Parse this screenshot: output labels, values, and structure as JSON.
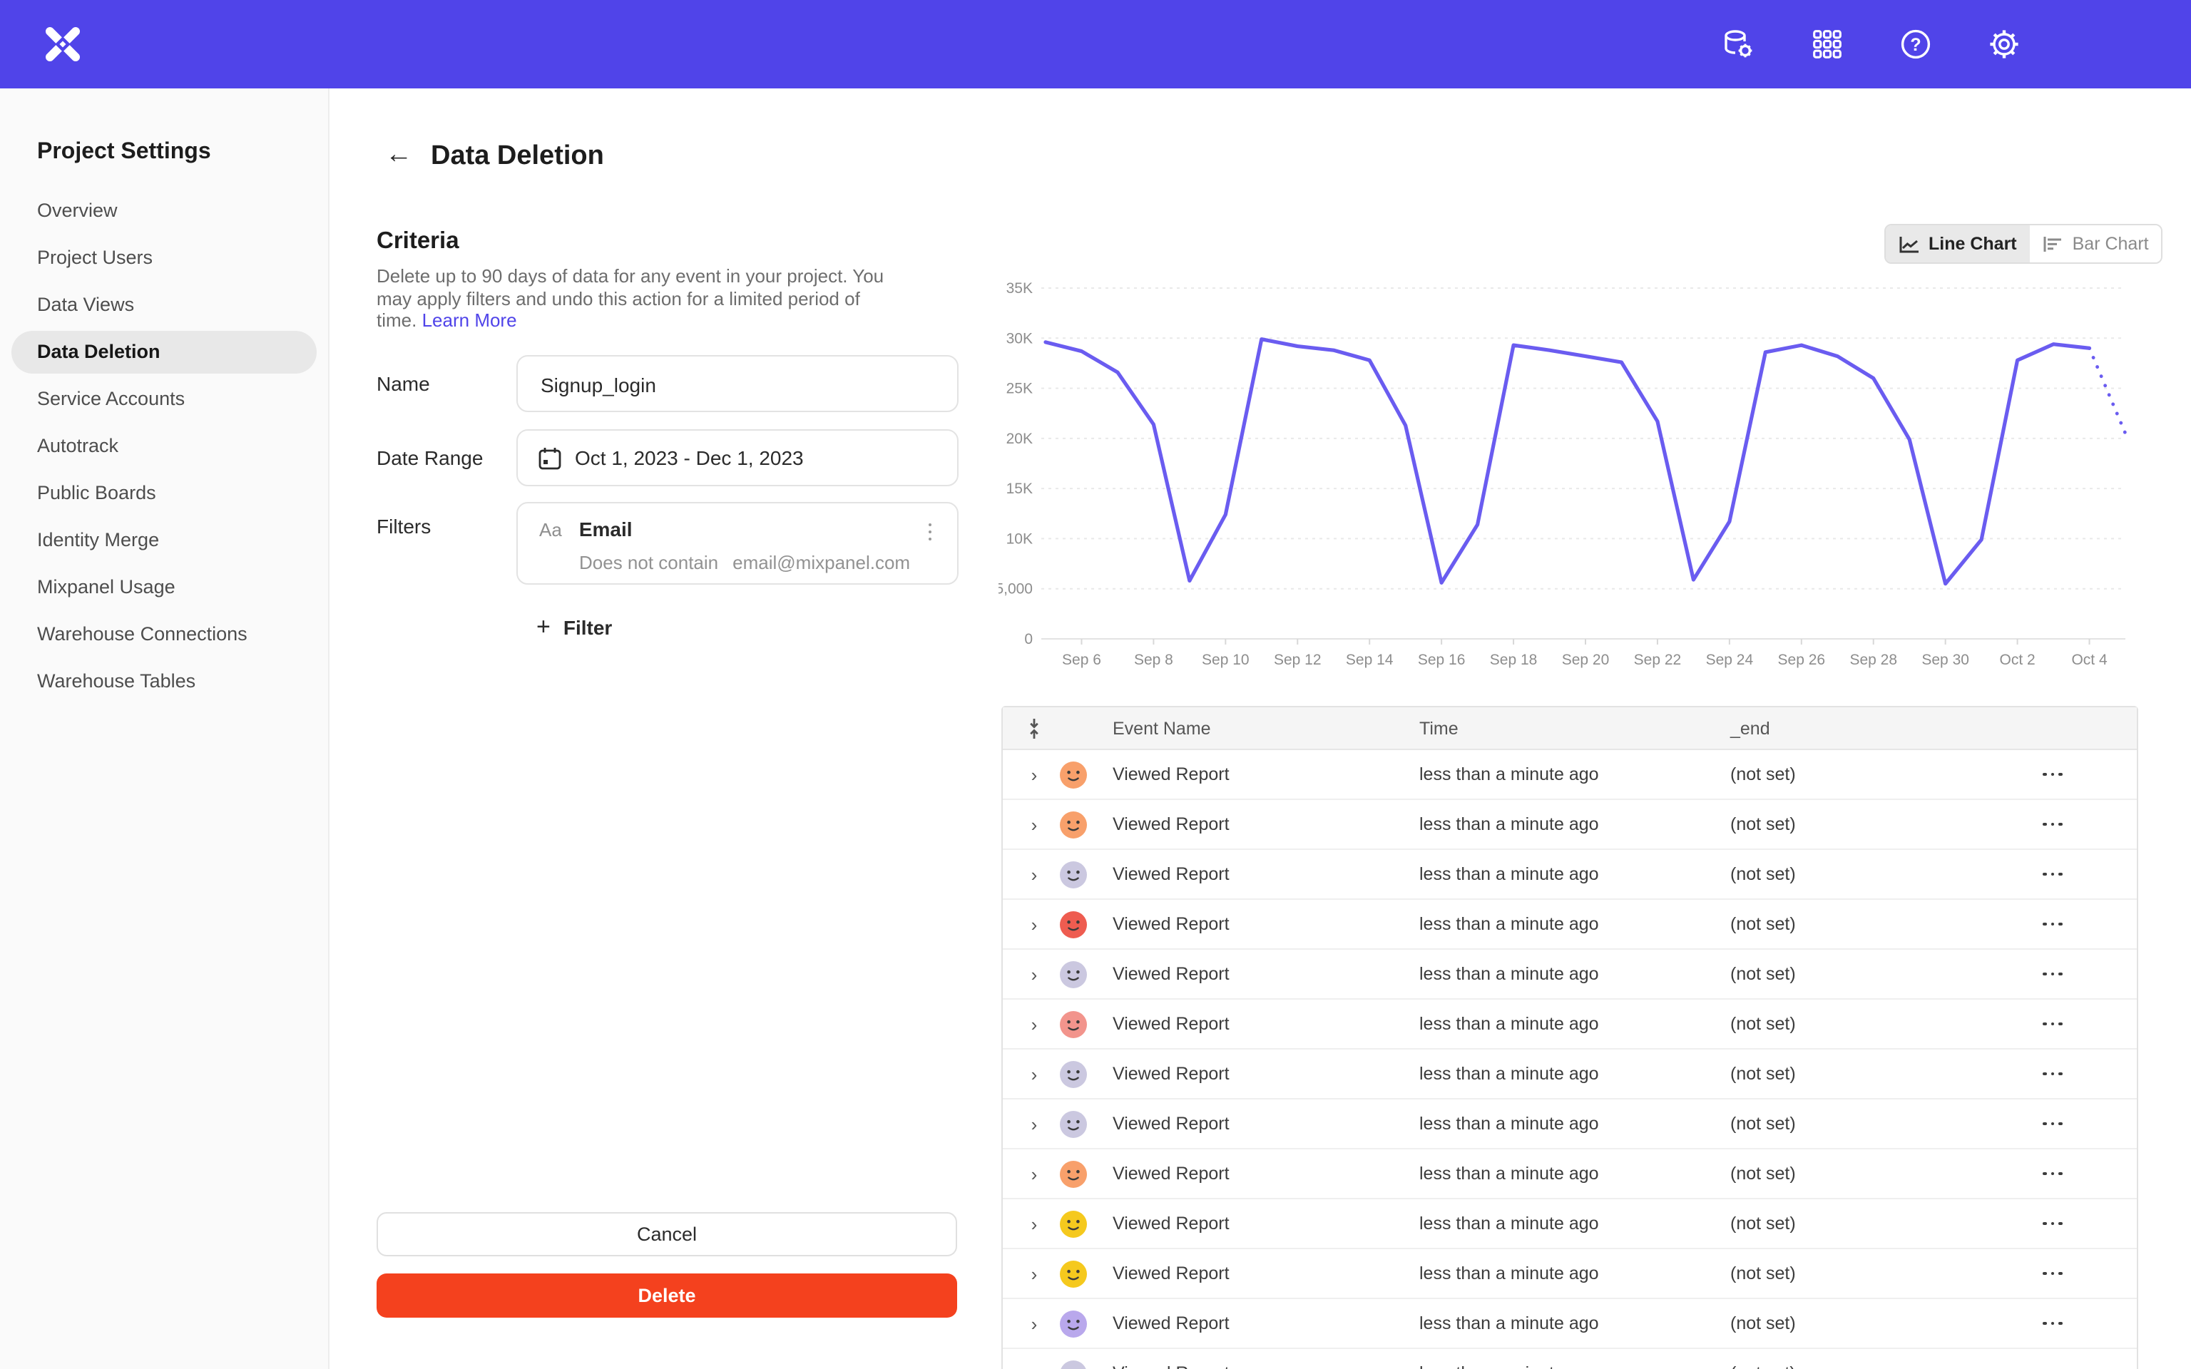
{
  "brand_color": "#5044E9",
  "accent_delete_color": "#F4411E",
  "header": {
    "logo": "mixpanel-x-logo",
    "icons": [
      "data-connections-icon",
      "apps-grid-icon",
      "help-icon",
      "settings-gear-icon"
    ]
  },
  "sidebar": {
    "title": "Project Settings",
    "items": [
      {
        "label": "Overview",
        "selected": false
      },
      {
        "label": "Project Users",
        "selected": false
      },
      {
        "label": "Data Views",
        "selected": false
      },
      {
        "label": "Data Deletion",
        "selected": true
      },
      {
        "label": "Service Accounts",
        "selected": false
      },
      {
        "label": "Autotrack",
        "selected": false
      },
      {
        "label": "Public Boards",
        "selected": false
      },
      {
        "label": "Identity Merge",
        "selected": false
      },
      {
        "label": "Mixpanel Usage",
        "selected": false
      },
      {
        "label": "Warehouse Connections",
        "selected": false
      },
      {
        "label": "Warehouse Tables",
        "selected": false
      }
    ]
  },
  "page": {
    "title": "Data Deletion"
  },
  "criteria": {
    "heading": "Criteria",
    "description": "Delete up to 90 days of data for any event in your project. You may apply filters and undo this action for a limited period of time. ",
    "link_label": "Learn More"
  },
  "form": {
    "name_label": "Name",
    "name_value": "Signup_login",
    "date_label": "Date Range",
    "date_value": "Oct 1, 2023 - Dec 1, 2023",
    "filters_label": "Filters",
    "filter": {
      "type_badge": "Aa",
      "property": "Email",
      "operator": "Does not contain",
      "value": "email@mixpanel.com"
    },
    "add_filter_label": "Filter",
    "add_filter_plus": "+"
  },
  "actions": {
    "cancel_label": "Cancel",
    "delete_label": "Delete"
  },
  "chart_toggle": {
    "line_label": "Line Chart",
    "bar_label": "Bar Chart",
    "active": "line"
  },
  "chart_data": {
    "type": "line",
    "title": "",
    "xlabel": "",
    "ylabel": "",
    "line_color": "#6A5CF0",
    "grid": true,
    "ylim": [
      0,
      35000
    ],
    "ytick_labels": [
      "35K",
      "30K",
      "25K",
      "20K",
      "15K",
      "10K",
      "5,000",
      "0"
    ],
    "x": [
      "Sep 5",
      "Sep 6",
      "Sep 7",
      "Sep 8",
      "Sep 9",
      "Sep 10",
      "Sep 11",
      "Sep 12",
      "Sep 13",
      "Sep 14",
      "Sep 15",
      "Sep 16",
      "Sep 17",
      "Sep 18",
      "Sep 19",
      "Sep 20",
      "Sep 21",
      "Sep 22",
      "Sep 23",
      "Sep 24",
      "Sep 25",
      "Sep 26",
      "Sep 27",
      "Sep 28",
      "Sep 29",
      "Sep 30",
      "Oct 1",
      "Oct 2",
      "Oct 3",
      "Oct 4",
      "Oct 5"
    ],
    "values": [
      29600,
      28700,
      26600,
      21400,
      5800,
      12400,
      29900,
      29200,
      28800,
      27800,
      21300,
      5600,
      11400,
      29300,
      28800,
      28200,
      27600,
      21700,
      5900,
      11700,
      28600,
      29300,
      28200,
      26000,
      19900,
      5500,
      9900,
      27800,
      29400,
      29000,
      20500
    ],
    "xtick_labels": [
      "Sep 6",
      "Sep 8",
      "Sep 10",
      "Sep 12",
      "Sep 14",
      "Sep 16",
      "Sep 18",
      "Sep 20",
      "Sep 22",
      "Sep 24",
      "Sep 26",
      "Sep 28",
      "Sep 30",
      "Oct 2",
      "Oct 4"
    ],
    "projected_last_segment": true,
    "legend": []
  },
  "table": {
    "columns": [
      "Event Name",
      "Time",
      "_end"
    ],
    "rows": [
      {
        "event": "Viewed Report",
        "time": "less than a minute ago",
        "end": "(not set)",
        "avatar_color": "#F8A06B"
      },
      {
        "event": "Viewed Report",
        "time": "less than a minute ago",
        "end": "(not set)",
        "avatar_color": "#F8A06B"
      },
      {
        "event": "Viewed Report",
        "time": "less than a minute ago",
        "end": "(not set)",
        "avatar_color": "#CBC8E0"
      },
      {
        "event": "Viewed Report",
        "time": "less than a minute ago",
        "end": "(not set)",
        "avatar_color": "#EE5C50"
      },
      {
        "event": "Viewed Report",
        "time": "less than a minute ago",
        "end": "(not set)",
        "avatar_color": "#CBC8E0"
      },
      {
        "event": "Viewed Report",
        "time": "less than a minute ago",
        "end": "(not set)",
        "avatar_color": "#F2948C"
      },
      {
        "event": "Viewed Report",
        "time": "less than a minute ago",
        "end": "(not set)",
        "avatar_color": "#CBC8E0"
      },
      {
        "event": "Viewed Report",
        "time": "less than a minute ago",
        "end": "(not set)",
        "avatar_color": "#CBC8E0"
      },
      {
        "event": "Viewed Report",
        "time": "less than a minute ago",
        "end": "(not set)",
        "avatar_color": "#F8A06B"
      },
      {
        "event": "Viewed Report",
        "time": "less than a minute ago",
        "end": "(not set)",
        "avatar_color": "#F5C91E"
      },
      {
        "event": "Viewed Report",
        "time": "less than a minute ago",
        "end": "(not set)",
        "avatar_color": "#F5C91E"
      },
      {
        "event": "Viewed Report",
        "time": "less than a minute ago",
        "end": "(not set)",
        "avatar_color": "#B9A8EC"
      },
      {
        "event": "Viewed Report",
        "time": "less than a minute ago",
        "end": "(not set)",
        "avatar_color": "#CBC8E0"
      }
    ]
  }
}
